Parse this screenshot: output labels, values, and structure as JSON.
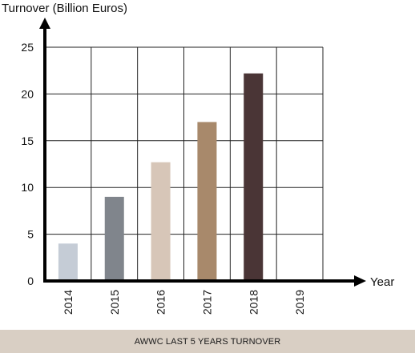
{
  "chart_data": {
    "type": "bar",
    "ylabel": "Turnover (Billion Euros)",
    "xlabel": "Year",
    "categories": [
      "2014",
      "2015",
      "2016",
      "2017",
      "2018",
      "2019"
    ],
    "values": [
      4,
      9,
      12.7,
      17,
      22.2,
      null
    ],
    "colors": [
      "#c5ccd6",
      "#80858c",
      "#d7c6b8",
      "#a8896b",
      "#4a3536",
      "#ffffff"
    ],
    "ylim": [
      0,
      25
    ],
    "yticks": [
      "0",
      "5",
      "10",
      "15",
      "20",
      "25"
    ],
    "grid": true,
    "footer": "AWWC LAST 5 YEARS TURNOVER"
  }
}
